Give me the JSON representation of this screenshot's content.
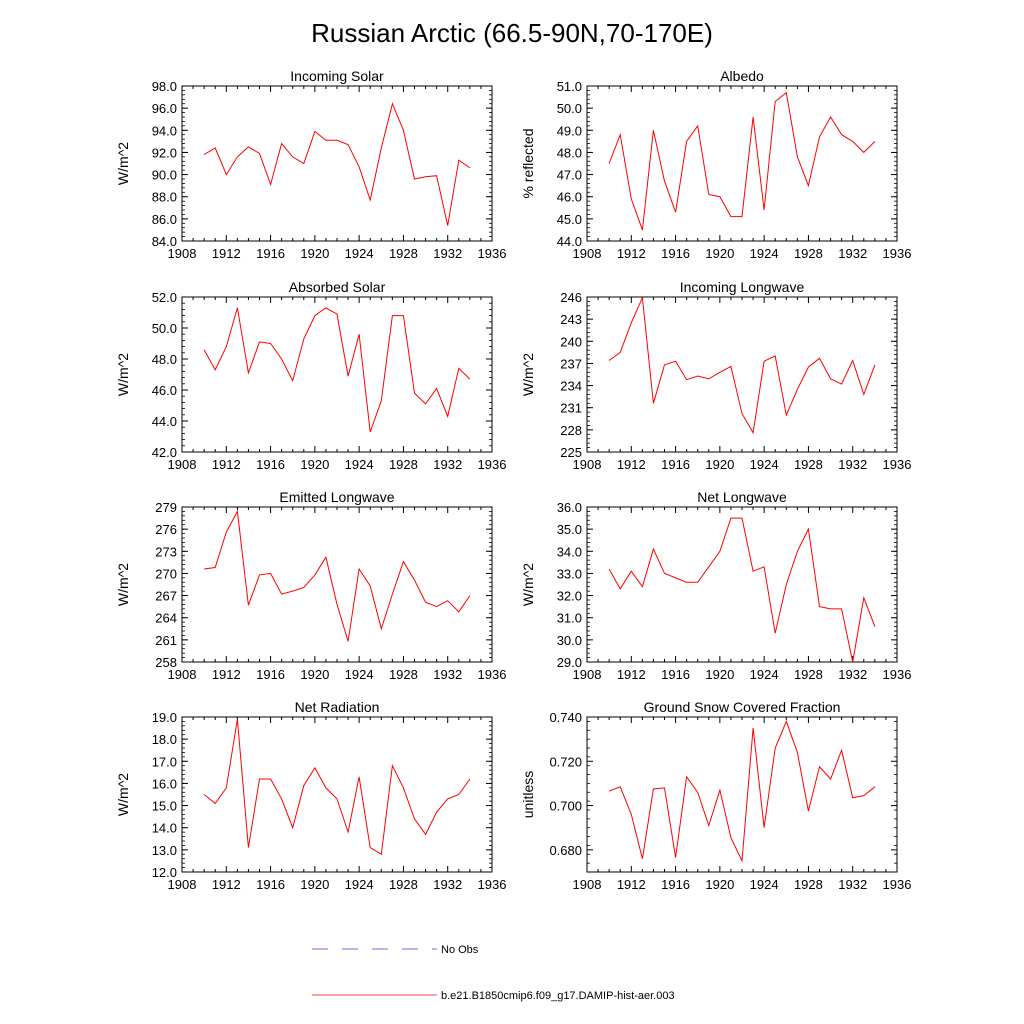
{
  "figure": {
    "title": "Russian Arctic (66.5-90N,70-170E)"
  },
  "legend": {
    "items": [
      {
        "label": "No Obs",
        "color": "#3344cc",
        "dash": "dashed"
      },
      {
        "label": "b.e21.B1850cmip6.f09_g17.DAMIP-hist-aer.003",
        "color": "#ff0000",
        "dash": "solid"
      }
    ]
  },
  "chart_data": [
    {
      "type": "line",
      "title": "Incoming Solar",
      "ylabel": "W/m^2",
      "xlim": [
        1908,
        1936
      ],
      "ylim": [
        84,
        98
      ],
      "xticks": [
        1908,
        1912,
        1916,
        1920,
        1924,
        1928,
        1932,
        1936
      ],
      "yticks": [
        "84.0",
        "86.0",
        "88.0",
        "90.0",
        "92.0",
        "94.0",
        "96.0",
        "98.0"
      ],
      "x": [
        1910,
        1911,
        1912,
        1913,
        1914,
        1915,
        1916,
        1917,
        1918,
        1919,
        1920,
        1921,
        1922,
        1923,
        1924,
        1925,
        1926,
        1927,
        1928,
        1929,
        1930,
        1931,
        1932,
        1933,
        1934
      ],
      "series": [
        {
          "color": "#ff0000",
          "values": [
            91.8,
            92.4,
            90.0,
            91.6,
            92.5,
            91.9,
            89.1,
            92.8,
            91.6,
            91.0,
            93.9,
            93.1,
            93.1,
            92.7,
            90.7,
            87.7,
            92.4,
            96.4,
            94.0,
            89.6,
            89.8,
            89.9,
            85.4,
            91.3,
            90.6
          ]
        }
      ]
    },
    {
      "type": "line",
      "title": "Albedo",
      "ylabel": "% reflected",
      "xlim": [
        1908,
        1936
      ],
      "ylim": [
        44,
        51
      ],
      "xticks": [
        1908,
        1912,
        1916,
        1920,
        1924,
        1928,
        1932,
        1936
      ],
      "yticks": [
        "44.0",
        "45.0",
        "46.0",
        "47.0",
        "48.0",
        "49.0",
        "50.0",
        "51.0"
      ],
      "x": [
        1910,
        1911,
        1912,
        1913,
        1914,
        1915,
        1916,
        1917,
        1918,
        1919,
        1920,
        1921,
        1922,
        1923,
        1924,
        1925,
        1926,
        1927,
        1928,
        1929,
        1930,
        1931,
        1932,
        1933,
        1934
      ],
      "series": [
        {
          "color": "#ff0000",
          "values": [
            47.5,
            48.8,
            45.9,
            44.5,
            49.0,
            46.7,
            45.3,
            48.5,
            49.2,
            46.1,
            46.0,
            45.1,
            45.1,
            49.6,
            45.4,
            50.3,
            50.7,
            47.8,
            46.5,
            48.7,
            49.6,
            48.8,
            48.5,
            48.0,
            48.5
          ]
        }
      ]
    },
    {
      "type": "line",
      "title": "Absorbed Solar",
      "ylabel": "W/m^2",
      "xlim": [
        1908,
        1936
      ],
      "ylim": [
        42,
        52
      ],
      "xticks": [
        1908,
        1912,
        1916,
        1920,
        1924,
        1928,
        1932,
        1936
      ],
      "yticks": [
        "42.0",
        "44.0",
        "46.0",
        "48.0",
        "50.0",
        "52.0"
      ],
      "x": [
        1910,
        1911,
        1912,
        1913,
        1914,
        1915,
        1916,
        1917,
        1918,
        1919,
        1920,
        1921,
        1922,
        1923,
        1924,
        1925,
        1926,
        1927,
        1928,
        1929,
        1930,
        1931,
        1932,
        1933,
        1934
      ],
      "series": [
        {
          "color": "#ff0000",
          "values": [
            48.6,
            47.3,
            48.8,
            51.3,
            47.1,
            49.1,
            49.0,
            48.0,
            46.6,
            49.3,
            50.8,
            51.3,
            50.9,
            46.9,
            49.6,
            43.3,
            45.3,
            50.8,
            50.8,
            45.8,
            45.1,
            46.1,
            44.3,
            47.4,
            46.7
          ]
        }
      ]
    },
    {
      "type": "line",
      "title": "Incoming Longwave",
      "ylabel": "W/m^2",
      "xlim": [
        1908,
        1936
      ],
      "ylim": [
        225,
        246
      ],
      "xticks": [
        1908,
        1912,
        1916,
        1920,
        1924,
        1928,
        1932,
        1936
      ],
      "yticks": [
        "225",
        "228",
        "231",
        "234",
        "237",
        "240",
        "243",
        "246"
      ],
      "x": [
        1910,
        1911,
        1912,
        1913,
        1914,
        1915,
        1916,
        1917,
        1918,
        1919,
        1920,
        1921,
        1922,
        1923,
        1924,
        1925,
        1926,
        1927,
        1928,
        1929,
        1930,
        1931,
        1932,
        1933,
        1934
      ],
      "series": [
        {
          "color": "#ff0000",
          "values": [
            237.4,
            238.5,
            242.5,
            245.9,
            231.6,
            236.8,
            237.3,
            234.8,
            235.3,
            234.9,
            235.8,
            236.6,
            230.2,
            227.6,
            237.3,
            238.0,
            230.0,
            233.5,
            236.5,
            237.7,
            234.9,
            234.2,
            237.4,
            232.8,
            236.8
          ]
        }
      ]
    },
    {
      "type": "line",
      "title": "Emitted Longwave",
      "ylabel": "W/m^2",
      "xlim": [
        1908,
        1936
      ],
      "ylim": [
        258,
        279
      ],
      "xticks": [
        1908,
        1912,
        1916,
        1920,
        1924,
        1928,
        1932,
        1936
      ],
      "yticks": [
        "258",
        "261",
        "264",
        "267",
        "270",
        "273",
        "276",
        "279"
      ],
      "x": [
        1910,
        1911,
        1912,
        1913,
        1914,
        1915,
        1916,
        1917,
        1918,
        1919,
        1920,
        1921,
        1922,
        1923,
        1924,
        1925,
        1926,
        1927,
        1928,
        1929,
        1930,
        1931,
        1932,
        1933,
        1934
      ],
      "series": [
        {
          "color": "#ff0000",
          "values": [
            270.6,
            270.8,
            275.6,
            278.4,
            265.7,
            269.8,
            270.0,
            267.2,
            267.6,
            268.1,
            269.8,
            272.2,
            265.8,
            260.8,
            270.6,
            268.3,
            262.5,
            267.2,
            271.6,
            269.1,
            266.1,
            265.5,
            266.3,
            264.8,
            267.0
          ]
        }
      ]
    },
    {
      "type": "line",
      "title": "Net Longwave",
      "ylabel": "W/m^2",
      "xlim": [
        1908,
        1936
      ],
      "ylim": [
        29,
        36
      ],
      "xticks": [
        1908,
        1912,
        1916,
        1920,
        1924,
        1928,
        1932,
        1936
      ],
      "yticks": [
        "29.0",
        "30.0",
        "31.0",
        "32.0",
        "33.0",
        "34.0",
        "35.0",
        "36.0"
      ],
      "x": [
        1910,
        1911,
        1912,
        1913,
        1914,
        1915,
        1916,
        1917,
        1918,
        1919,
        1920,
        1921,
        1922,
        1923,
        1924,
        1925,
        1926,
        1927,
        1928,
        1929,
        1930,
        1931,
        1932,
        1933,
        1934
      ],
      "series": [
        {
          "color": "#ff0000",
          "values": [
            33.2,
            32.3,
            33.1,
            32.4,
            34.1,
            33.0,
            32.8,
            32.6,
            32.6,
            33.3,
            34.0,
            35.5,
            35.5,
            33.1,
            33.3,
            30.3,
            32.5,
            34.0,
            35.0,
            31.5,
            31.4,
            31.4,
            29.0,
            31.9,
            30.6
          ]
        }
      ]
    },
    {
      "type": "line",
      "title": "Net Radiation",
      "ylabel": "W/m^2",
      "xlim": [
        1908,
        1936
      ],
      "ylim": [
        12,
        19
      ],
      "xticks": [
        1908,
        1912,
        1916,
        1920,
        1924,
        1928,
        1932,
        1936
      ],
      "yticks": [
        "12.0",
        "13.0",
        "14.0",
        "15.0",
        "16.0",
        "17.0",
        "18.0",
        "19.0"
      ],
      "x": [
        1910,
        1911,
        1912,
        1913,
        1914,
        1915,
        1916,
        1917,
        1918,
        1919,
        1920,
        1921,
        1922,
        1923,
        1924,
        1925,
        1926,
        1927,
        1928,
        1929,
        1930,
        1931,
        1932,
        1933,
        1934
      ],
      "series": [
        {
          "color": "#ff0000",
          "values": [
            15.5,
            15.1,
            15.8,
            18.9,
            13.1,
            16.2,
            16.2,
            15.3,
            14.0,
            15.9,
            16.7,
            15.8,
            15.3,
            13.8,
            16.3,
            13.1,
            12.8,
            16.8,
            15.8,
            14.4,
            13.7,
            14.7,
            15.3,
            15.5,
            16.2
          ]
        }
      ]
    },
    {
      "type": "line",
      "title": "Ground Snow Covered Fraction",
      "ylabel": "unitless",
      "xlim": [
        1908,
        1936
      ],
      "ylim": [
        0.67,
        0.74
      ],
      "xticks": [
        1908,
        1912,
        1916,
        1920,
        1924,
        1928,
        1932,
        1936
      ],
      "yticks": [
        "0.680",
        "0.700",
        "0.720",
        "0.740"
      ],
      "x": [
        1910,
        1911,
        1912,
        1913,
        1914,
        1915,
        1916,
        1917,
        1918,
        1919,
        1920,
        1921,
        1922,
        1923,
        1924,
        1925,
        1926,
        1927,
        1928,
        1929,
        1930,
        1931,
        1932,
        1933,
        1934
      ],
      "series": [
        {
          "color": "#ff0000",
          "values": [
            0.7065,
            0.7085,
            0.696,
            0.676,
            0.7075,
            0.708,
            0.6765,
            0.713,
            0.706,
            0.691,
            0.707,
            0.6855,
            0.675,
            0.735,
            0.69,
            0.726,
            0.738,
            0.724,
            0.6975,
            0.7175,
            0.712,
            0.725,
            0.7035,
            0.7045,
            0.7085
          ]
        }
      ]
    }
  ]
}
